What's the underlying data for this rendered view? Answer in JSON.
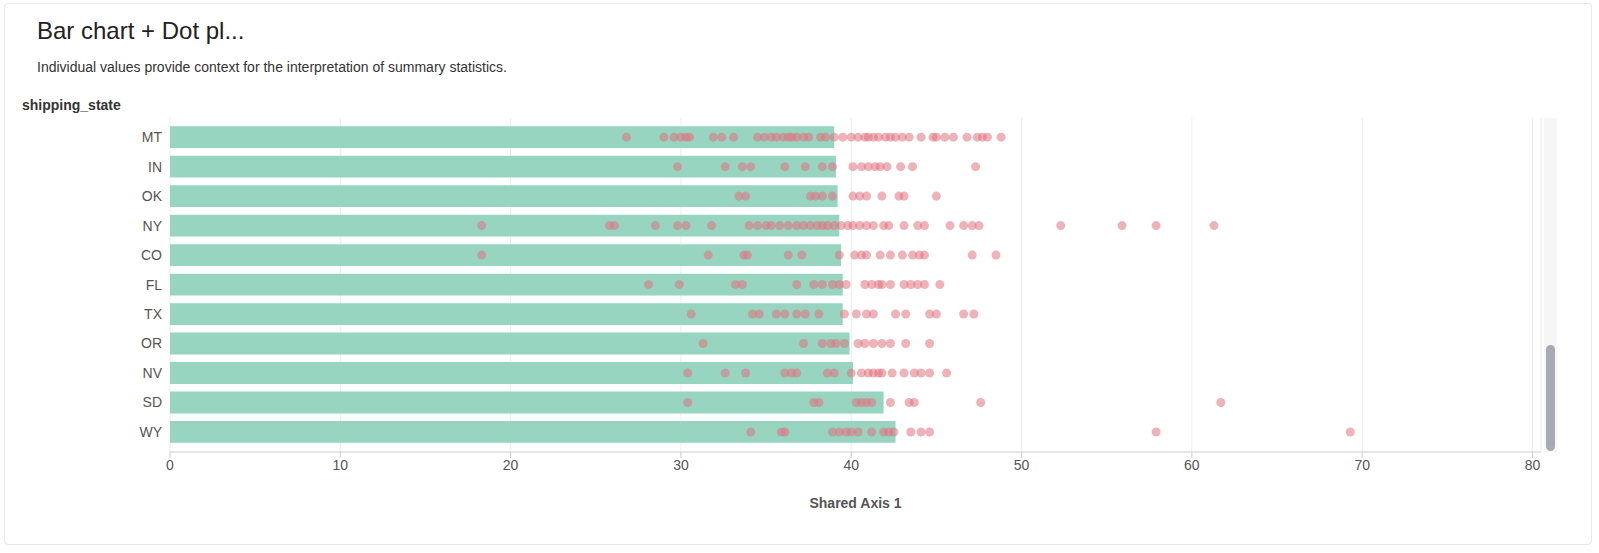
{
  "chart_data": {
    "type": "bar",
    "orientation": "horizontal",
    "title": "Bar chart + Dot pl...",
    "subtitle": "Individual values provide context for the interpretation of summary statistics.",
    "y_label": "shipping_state",
    "x_label": "Shared Axis 1",
    "categories": [
      "MT",
      "IN",
      "OK",
      "NY",
      "CO",
      "FL",
      "TX",
      "OR",
      "NV",
      "SD",
      "WY"
    ],
    "values": [
      39.0,
      39.1,
      39.2,
      39.3,
      39.4,
      39.5,
      39.5,
      39.9,
      40.1,
      41.9,
      42.6
    ],
    "color": "#98d5c0",
    "dots": {
      "type": "scatter",
      "color": "#e0737f",
      "values": [
        [
          26.8,
          29,
          29.6,
          30,
          30.3,
          30.5,
          31.9,
          32.4,
          33.1,
          34.5,
          34.9,
          35.3,
          35.6,
          36,
          36.3,
          36.5,
          36.8,
          37.2,
          37.5,
          38.2,
          38.5,
          39,
          39.5,
          40,
          40.4,
          40.8,
          41,
          41.3,
          41.6,
          42,
          42.3,
          42.6,
          43,
          43.4,
          44.1,
          44.8,
          45,
          45.5,
          46,
          46.8,
          47.4,
          47.7,
          48,
          48.8
        ],
        [
          29.8,
          32.6,
          33.6,
          34.1,
          36.1,
          37.3,
          38.3,
          38.9,
          40.1,
          40.6,
          41,
          41.4,
          41.7,
          42.1,
          42.9,
          43.6,
          47.3
        ],
        [
          33.4,
          33.8,
          37.6,
          37.9,
          38.3,
          38.9,
          40.1,
          40.5,
          40.9,
          41.8,
          42.8,
          43.1,
          45.0
        ],
        [
          18.3,
          25.8,
          26.1,
          28.5,
          29.8,
          30.3,
          31.8,
          34,
          34.5,
          35,
          35.3,
          35.8,
          36.3,
          36.8,
          37.2,
          37.6,
          38,
          38.3,
          38.6,
          39,
          39.4,
          39.8,
          40.1,
          40.5,
          40.9,
          41.3,
          41.9,
          42.2,
          43.1,
          43.9,
          44.3,
          45.8,
          46.6,
          47.1,
          47.5,
          52.3,
          55.9,
          57.9,
          61.3
        ],
        [
          18.3,
          31.6,
          33.7,
          33.9,
          36.3,
          37.1,
          39.3,
          40.2,
          40.6,
          40.9,
          41.7,
          42.3,
          43,
          43.6,
          44,
          44.3,
          47.1,
          48.5
        ],
        [
          28.1,
          29.9,
          33.2,
          33.6,
          36.8,
          37.8,
          38.3,
          38.9,
          39.3,
          39.7,
          40.8,
          41.2,
          41.6,
          41.8,
          42.3,
          43.1,
          43.5,
          43.9,
          44.3,
          45.2
        ],
        [
          30.6,
          34.2,
          34.6,
          35.6,
          36.1,
          36.8,
          37.3,
          38.1,
          39.6,
          40.3,
          40.9,
          41.3,
          42.6,
          43.2,
          44.6,
          45,
          46.6,
          47.2
        ],
        [
          31.3,
          37.2,
          38.3,
          38.8,
          39.1,
          39.6,
          40.4,
          40.8,
          41.3,
          41.8,
          42.3,
          43.2,
          44.6
        ],
        [
          30.4,
          32.6,
          33.8,
          36.1,
          36.5,
          36.8,
          38.6,
          39,
          40,
          40.6,
          41,
          41.3,
          41.6,
          41.8,
          42.4,
          43.1,
          43.7,
          44.1,
          44.6,
          45.6
        ],
        [
          30.4,
          37.8,
          38.1,
          40.3,
          40.6,
          40.9,
          41.2,
          42.3,
          43.4,
          43.7,
          47.6,
          61.7
        ],
        [
          34.1,
          35.9,
          36.1,
          38.9,
          39.3,
          39.7,
          40,
          40.4,
          41.2,
          41.9,
          42.2,
          42.5,
          43.5,
          44.1,
          44.6,
          57.9,
          69.3
        ]
      ]
    },
    "xlim": [
      0,
      80.5
    ],
    "xticks": [
      0,
      10,
      20,
      30,
      40,
      50,
      60,
      70,
      80
    ],
    "grid": true
  }
}
